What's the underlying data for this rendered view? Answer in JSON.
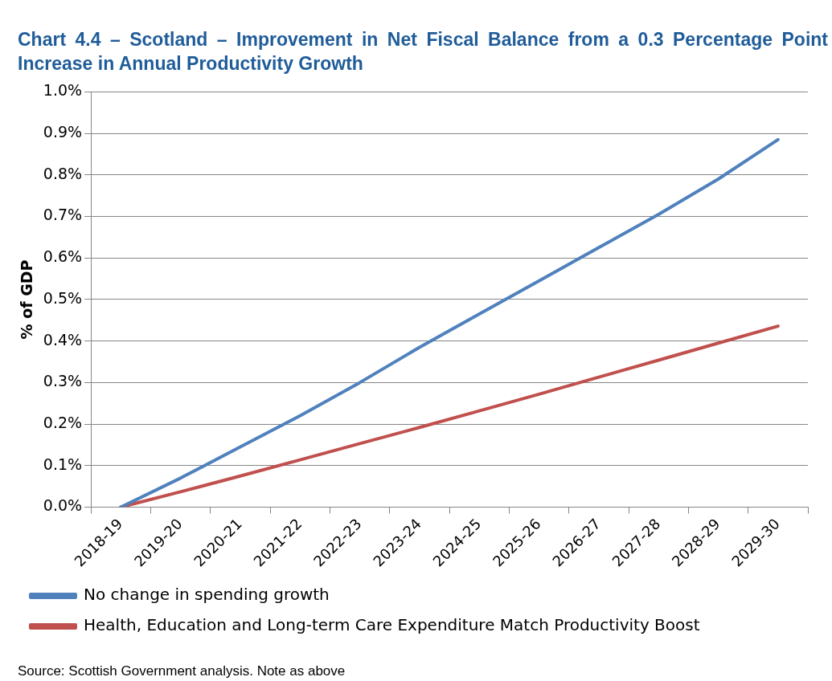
{
  "chart_data": {
    "type": "line",
    "title": "Chart 4.4 – Scotland – Improvement in Net Fiscal Balance from a 0.3 Percentage Point Increase in Annual Productivity Growth",
    "ylabel": "% of GDP",
    "categories": [
      "2018-19",
      "2019-20",
      "2020-21",
      "2021-22",
      "2022-23",
      "2023-24",
      "2024-25",
      "2025-26",
      "2026-27",
      "2027-28",
      "2028-29",
      "2029-30"
    ],
    "series": [
      {
        "name": "No change in spending growth",
        "color": "#4f81bd",
        "values": [
          0,
          0.07,
          0.145,
          0.22,
          0.3,
          0.385,
          0.465,
          0.545,
          0.625,
          0.705,
          0.79,
          0.885
        ]
      },
      {
        "name": "Health, Education and Long-term Care Expenditure Match Productivity Boost",
        "color": "#c0504d",
        "values": [
          0,
          0.037,
          0.075,
          0.114,
          0.153,
          0.192,
          0.232,
          0.272,
          0.313,
          0.354,
          0.395,
          0.436
        ]
      }
    ],
    "ylim": [
      0,
      1.0
    ],
    "yticks": [
      {
        "value": 0,
        "label": "0.0%"
      },
      {
        "value": 0.1,
        "label": "0.1%"
      },
      {
        "value": 0.2,
        "label": "0.2%"
      },
      {
        "value": 0.3,
        "label": "0.3%"
      },
      {
        "value": 0.4,
        "label": "0.4%"
      },
      {
        "value": 0.5,
        "label": "0.5%"
      },
      {
        "value": 0.6,
        "label": "0.6%"
      },
      {
        "value": 0.7,
        "label": "0.7%"
      },
      {
        "value": 0.8,
        "label": "0.8%"
      },
      {
        "value": 0.9,
        "label": "0.9%"
      },
      {
        "value": 1.0,
        "label": "1.0%"
      }
    ],
    "grid": "y",
    "legend": "bottom",
    "marker": "none",
    "line_style": "solid",
    "annotations": [
      "Source: Scottish Government analysis. Note as above"
    ]
  }
}
